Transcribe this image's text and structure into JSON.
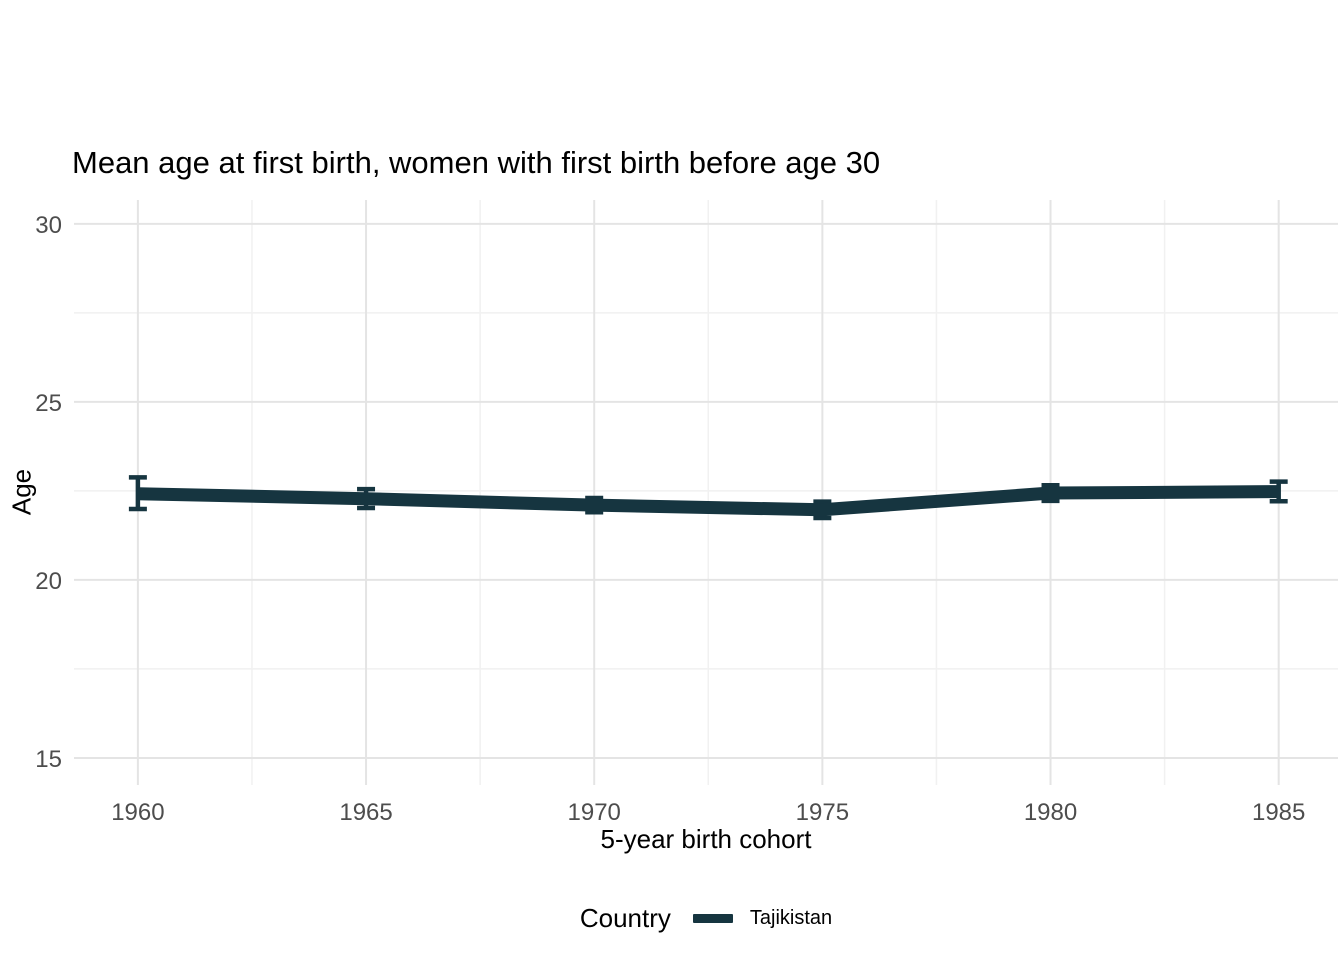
{
  "chart_data": {
    "type": "line",
    "title": "Mean age at first birth, women with first birth before age 30",
    "xlabel": "5-year birth cohort",
    "ylabel": "Age",
    "x": [
      1960,
      1965,
      1970,
      1975,
      1980,
      1985
    ],
    "series": [
      {
        "name": "Tajikistan",
        "color": "#163540",
        "mean": [
          22.42,
          22.28,
          22.1,
          21.97,
          22.44,
          22.48
        ],
        "ci_lower": [
          21.99,
          22.02,
          21.9,
          21.74,
          22.22,
          22.21
        ],
        "ci_upper": [
          22.88,
          22.55,
          22.3,
          22.2,
          22.66,
          22.76
        ]
      }
    ],
    "error_bars": true,
    "x_ticks": [
      1960,
      1965,
      1970,
      1975,
      1980,
      1985
    ],
    "y_ticks": [
      15,
      20,
      25,
      30
    ],
    "xlim": [
      1958.6,
      1986.3
    ],
    "ylim": [
      14.24,
      30.67
    ],
    "grid": {
      "on": true,
      "major_color": "#e4e4e4",
      "minor_color": "#f1f1f1",
      "x_minor": [
        1962.5,
        1967.5,
        1972.5,
        1977.5,
        1982.5
      ],
      "y_minor": [
        17.5,
        22.5,
        27.5
      ]
    },
    "legend": {
      "title": "Country",
      "position": "bottom",
      "items": [
        {
          "label": "Tajikistan",
          "color": "#163540"
        }
      ]
    },
    "axis_text_color": "#4d4d4d",
    "background_color": "#ffffff"
  }
}
